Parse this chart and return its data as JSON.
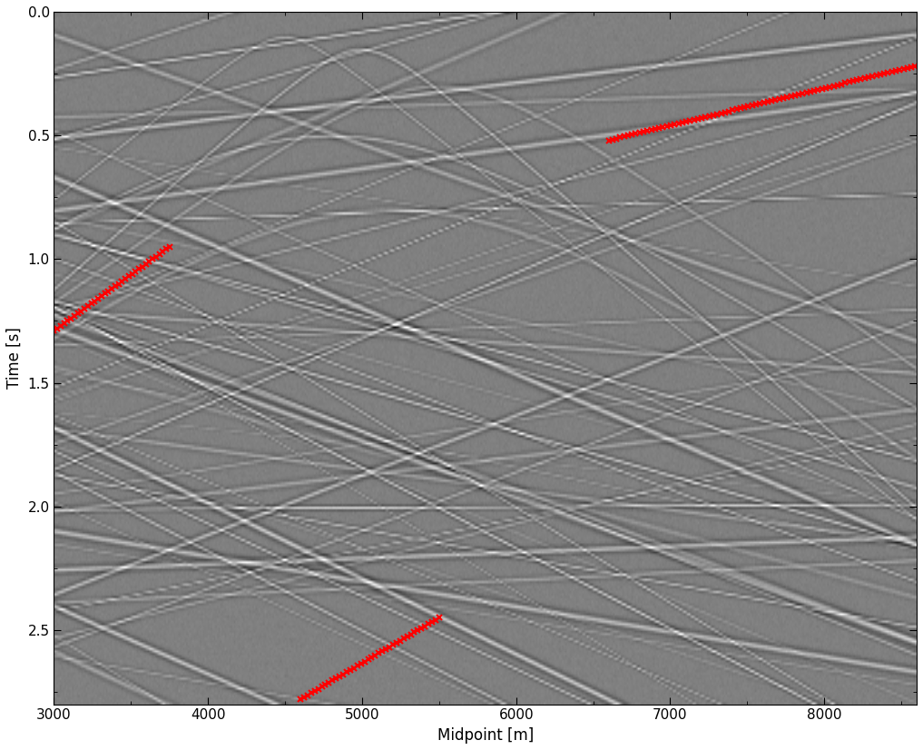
{
  "xlim": [
    3000,
    8600
  ],
  "ylim": [
    2.8,
    0.0
  ],
  "xlabel": "Midpoint [m]",
  "ylabel": "Time [s]",
  "xticks": [
    3000,
    4000,
    5000,
    6000,
    7000,
    8000
  ],
  "yticks": [
    0,
    0.5,
    1.0,
    1.5,
    2.0,
    2.5
  ],
  "figsize": [
    10.17,
    8.26
  ],
  "dpi": 100,
  "background_color": "#ffffff",
  "red_marker_color": "red",
  "red_marker": "x",
  "red_marker_size": 5,
  "red_marker_linewidth": 1.5,
  "seismic_cmap": "gray",
  "title": ""
}
